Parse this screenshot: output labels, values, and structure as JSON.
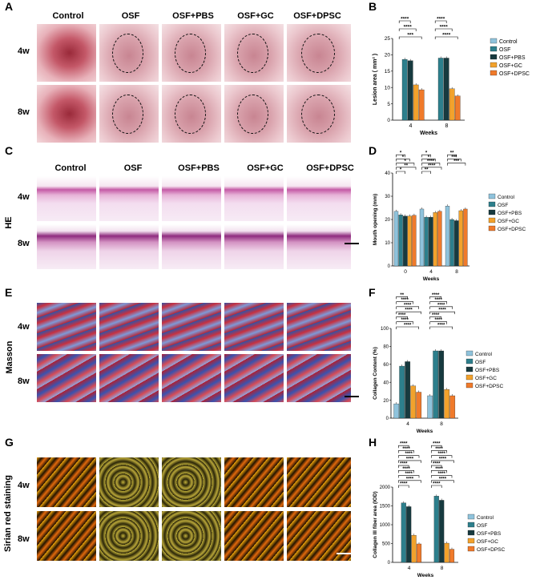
{
  "panels": {
    "A": "A",
    "B": "B",
    "C": "C",
    "D": "D",
    "E": "E",
    "F": "F",
    "G": "G",
    "H": "H"
  },
  "groups": [
    "Control",
    "OSF",
    "OSF+PBS",
    "OSF+GC",
    "OSF+DPSC"
  ],
  "rows": [
    "4w",
    "8w"
  ],
  "stain_labels": {
    "he": "HE",
    "masson": "Masson",
    "sirius": "Sirian red staining"
  },
  "colors": {
    "Control": "#8fc3dc",
    "OSF": "#2d7f8c",
    "OSF+PBS": "#173a3f",
    "OSF+GC": "#f2a22c",
    "OSF+DPSC": "#f07a2a"
  },
  "chart_data": [
    {
      "id": "B",
      "type": "bar",
      "ylabel": "Lesion area ( mm² )",
      "xlabel": "Weeks",
      "categories": [
        "4",
        "8"
      ],
      "ylim": [
        0,
        25
      ],
      "yticks": [
        "0",
        "5",
        "10",
        "15",
        "20",
        "25"
      ],
      "series": [
        {
          "name": "Control",
          "values": [
            0,
            0
          ]
        },
        {
          "name": "OSF",
          "values": [
            18.6,
            19.0
          ]
        },
        {
          "name": "OSF+PBS",
          "values": [
            18.2,
            19.0
          ]
        },
        {
          "name": "OSF+GC",
          "values": [
            10.8,
            9.6
          ]
        },
        {
          "name": "OSF+DPSC",
          "values": [
            9.3,
            7.4
          ]
        }
      ],
      "sig": [
        "****",
        "****",
        "***",
        "****",
        "****",
        "****"
      ]
    },
    {
      "id": "D",
      "type": "bar",
      "ylabel": "Mouth opening (mm)",
      "xlabel": "Weeks",
      "categories": [
        "0",
        "4",
        "8"
      ],
      "ylim": [
        0,
        40
      ],
      "yticks": [
        "0",
        "10",
        "20",
        "30",
        "40"
      ],
      "series": [
        {
          "name": "Control",
          "values": [
            23.5,
            24.5,
            25.8
          ]
        },
        {
          "name": "OSF",
          "values": [
            22.0,
            21.0,
            20.0
          ]
        },
        {
          "name": "OSF+PBS",
          "values": [
            21.5,
            21.0,
            19.5
          ]
        },
        {
          "name": "OSF+GC",
          "values": [
            21.5,
            23.0,
            23.8
          ]
        },
        {
          "name": "OSF+DPSC",
          "values": [
            21.8,
            23.5,
            24.5
          ]
        }
      ],
      "sig": [
        "*",
        "*",
        "*",
        "**",
        "*",
        "*",
        "*",
        "****",
        "****",
        "**",
        "**",
        "***",
        "***"
      ]
    },
    {
      "id": "F",
      "type": "bar",
      "ylabel": "Collagen Content (%)",
      "xlabel": "Weeks",
      "categories": [
        "4",
        "8"
      ],
      "ylim": [
        0,
        100
      ],
      "yticks": [
        "0",
        "20",
        "40",
        "60",
        "80",
        "100"
      ],
      "series": [
        {
          "name": "Control",
          "values": [
            16,
            25
          ]
        },
        {
          "name": "OSF",
          "values": [
            58,
            75
          ]
        },
        {
          "name": "OSF+PBS",
          "values": [
            63,
            75
          ]
        },
        {
          "name": "OSF+GC",
          "values": [
            36,
            32
          ]
        },
        {
          "name": "OSF+DPSC",
          "values": [
            29,
            25
          ]
        }
      ],
      "sig": [
        "**",
        "****",
        "****",
        "****",
        "****",
        "****",
        "****",
        "****",
        "****",
        "****",
        "****",
        "****",
        "****",
        "****"
      ]
    },
    {
      "id": "H",
      "type": "bar",
      "ylabel": "Collagen III fiber area (IOD)",
      "xlabel": "Weeks",
      "categories": [
        "4",
        "8"
      ],
      "ylim": [
        0,
        2000
      ],
      "yticks": [
        "0",
        "500",
        "1000",
        "1500",
        "2000"
      ],
      "series": [
        {
          "name": "Control",
          "values": [
            0,
            0
          ]
        },
        {
          "name": "OSF",
          "values": [
            1580,
            1760
          ]
        },
        {
          "name": "OSF+PBS",
          "values": [
            1480,
            1650
          ]
        },
        {
          "name": "OSF+GC",
          "values": [
            720,
            510
          ]
        },
        {
          "name": "OSF+DPSC",
          "values": [
            490,
            350
          ]
        }
      ],
      "sig": [
        "****",
        "****",
        "****",
        "****",
        "****",
        "****",
        "****",
        "****",
        "****",
        "****",
        "****",
        "****",
        "****",
        "****",
        "****",
        "****",
        "****",
        "****"
      ]
    }
  ]
}
